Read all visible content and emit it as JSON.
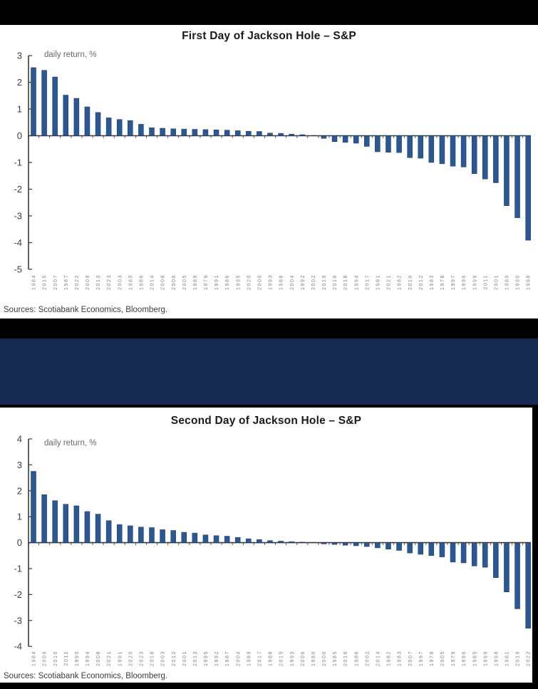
{
  "page": {
    "background_color": "#000000",
    "divider_band_color": "#15294E"
  },
  "colors": {
    "bar_fill": "#2B5795",
    "bar_stroke": "#17365D",
    "axis": "#3a3a3a"
  },
  "chart_data": [
    {
      "type": "bar",
      "title": "First Day of Jackson Hole – S&P",
      "annotation": "daily return, %",
      "source": "Sources: Scotiabank Economics, Bloomberg.",
      "ylabel": "daily return, %",
      "xlabel": "",
      "ylim": [
        -5,
        3
      ],
      "yticks": [
        3,
        2,
        1,
        0,
        -1,
        -2,
        -3,
        -4,
        -5
      ],
      "legend": "none",
      "grid": false,
      "categories": [
        "1984",
        "2015",
        "2007",
        "1987",
        "2022",
        "2009",
        "2013",
        "2023",
        "2003",
        "1985",
        "1986",
        "2014",
        "2008",
        "2006",
        "2005",
        "1989",
        "1979",
        "1991",
        "1986",
        "1995",
        "2020",
        "2000",
        "1993",
        "1988",
        "2004",
        "1992",
        "2002",
        "2019",
        "2016",
        "2018",
        "1994",
        "2017",
        "1981",
        "2021",
        "1982",
        "2010",
        "2012",
        "1983",
        "1978",
        "1997",
        "1996",
        "1999",
        "2011",
        "2001",
        "1980",
        "1990",
        "1998"
      ],
      "values": [
        2.55,
        2.45,
        2.2,
        1.52,
        1.4,
        1.08,
        0.87,
        0.67,
        0.61,
        0.57,
        0.43,
        0.3,
        0.28,
        0.26,
        0.25,
        0.24,
        0.23,
        0.22,
        0.21,
        0.19,
        0.17,
        0.16,
        0.1,
        0.09,
        0.06,
        0.04,
        0.01,
        -0.1,
        -0.22,
        -0.25,
        -0.28,
        -0.4,
        -0.6,
        -0.62,
        -0.63,
        -0.82,
        -0.84,
        -1.0,
        -1.05,
        -1.14,
        -1.17,
        -1.42,
        -1.62,
        -1.76,
        -2.62,
        -3.07,
        -3.91
      ]
    },
    {
      "type": "bar",
      "title": "Second Day of Jackson Hole – S&P",
      "annotation": "daily return, %",
      "source": "Sources: Scotiabank Economics, Bloomberg.",
      "ylabel": "daily return, %",
      "xlabel": "",
      "ylim": [
        -4,
        4
      ],
      "yticks": [
        4,
        3,
        2,
        1,
        0,
        -1,
        -2,
        -3,
        -4
      ],
      "legend": "none",
      "grid": false,
      "categories": [
        "1984",
        "2009",
        "2010",
        "2011",
        "1990",
        "1994",
        "2008",
        "2021",
        "1991",
        "2020",
        "2023",
        "2018",
        "2003",
        "2012",
        "2001",
        "2013",
        "1995",
        "1992",
        "1987",
        "2004",
        "1989",
        "2017",
        "1988",
        "2015",
        "1993",
        "2006",
        "1980",
        "2000",
        "1985",
        "2016",
        "1986",
        "2002",
        "2014",
        "1982",
        "1983",
        "2007",
        "1997",
        "1978",
        "2005",
        "1979",
        "1996",
        "1985",
        "1999",
        "1998",
        "1981",
        "2019",
        "2022"
      ],
      "values": [
        2.75,
        1.85,
        1.62,
        1.48,
        1.42,
        1.2,
        1.1,
        0.85,
        0.7,
        0.65,
        0.6,
        0.58,
        0.5,
        0.47,
        0.4,
        0.37,
        0.3,
        0.27,
        0.25,
        0.2,
        0.15,
        0.12,
        0.08,
        0.06,
        0.04,
        0.02,
        0.01,
        -0.05,
        -0.07,
        -0.1,
        -0.12,
        -0.15,
        -0.2,
        -0.25,
        -0.3,
        -0.4,
        -0.45,
        -0.5,
        -0.55,
        -0.75,
        -0.78,
        -0.9,
        -0.95,
        -1.35,
        -1.9,
        -2.55,
        -3.3
      ]
    }
  ]
}
